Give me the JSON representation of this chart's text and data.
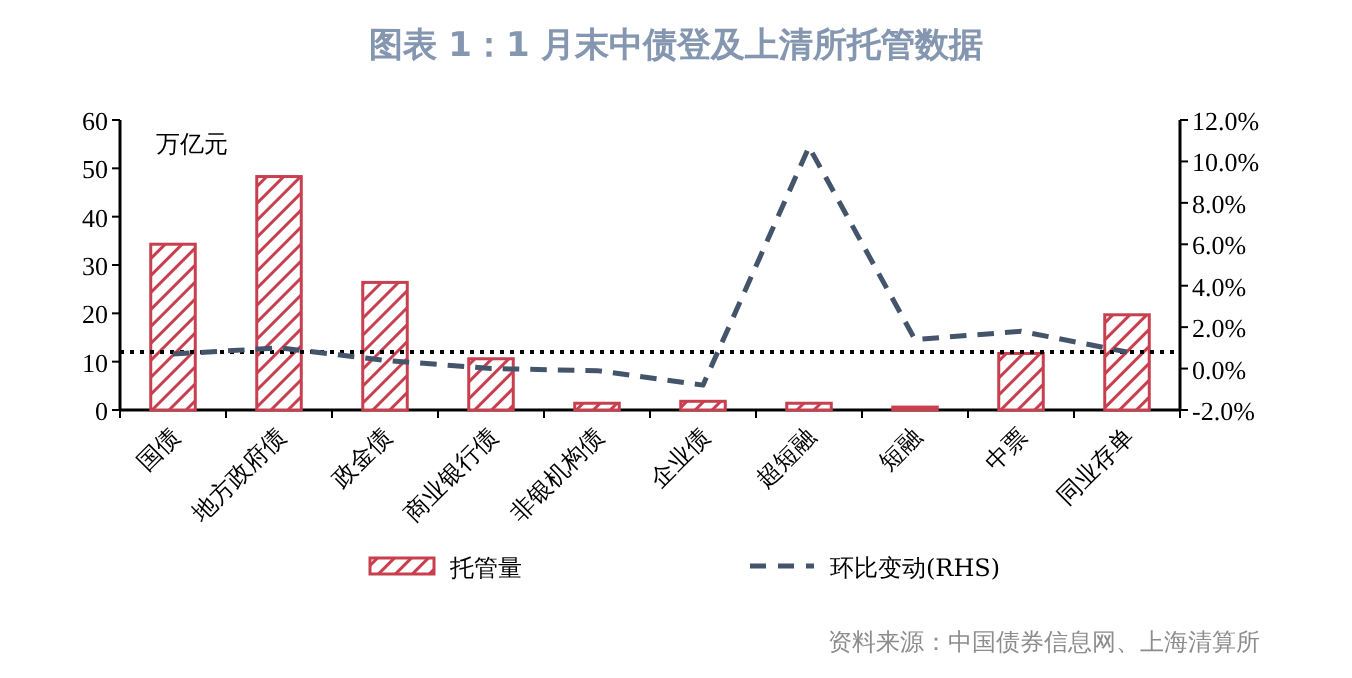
{
  "chart_data": {
    "type": "bar",
    "title": "图表 1：1 月末中债登及上清所托管数据",
    "ylabel": "万亿元",
    "annotations": [
      "资料来源：中国债券信息网、上海清算所"
    ],
    "categories": [
      "国债",
      "地方政府债",
      "政金债",
      "商业银行债",
      "非银机构债",
      "企业债",
      "超短融",
      "短融",
      "中票",
      "同业存单"
    ],
    "series": [
      {
        "name": "托管量",
        "color": "#c8404f",
        "values": [
          34.3,
          48.3,
          26.4,
          10.6,
          1.4,
          1.8,
          1.4,
          0.6,
          11.7,
          19.7
        ]
      },
      {
        "name": "环比变动(RHS)",
        "type": "line",
        "axis": "y2",
        "color": "#44546a",
        "line_style": "dashed",
        "values": [
          0.7,
          1.0,
          0.4,
          0.0,
          -0.1,
          -0.8,
          10.7,
          1.4,
          1.8,
          0.8
        ]
      }
    ],
    "ylim": [
      0,
      60
    ],
    "yticks": [
      0,
      10,
      20,
      30,
      40,
      50,
      60
    ],
    "y2lim": [
      -2,
      12
    ],
    "y2ticks": [
      {
        "value": -2,
        "label": "-2.0%"
      },
      {
        "value": 0,
        "label": "0.0%"
      },
      {
        "value": 2,
        "label": "2.0%"
      },
      {
        "value": 4,
        "label": "4.0%"
      },
      {
        "value": 6,
        "label": "6.0%"
      },
      {
        "value": 8,
        "label": "8.0%"
      },
      {
        "value": 10,
        "label": "10.0%"
      },
      {
        "value": 12,
        "label": "12.0%"
      }
    ],
    "ref_lines": [
      {
        "axis": "y2",
        "value": 0.8,
        "color": "#000000",
        "line_style": "dotted"
      }
    ],
    "legend": "bottom",
    "grid": false
  }
}
